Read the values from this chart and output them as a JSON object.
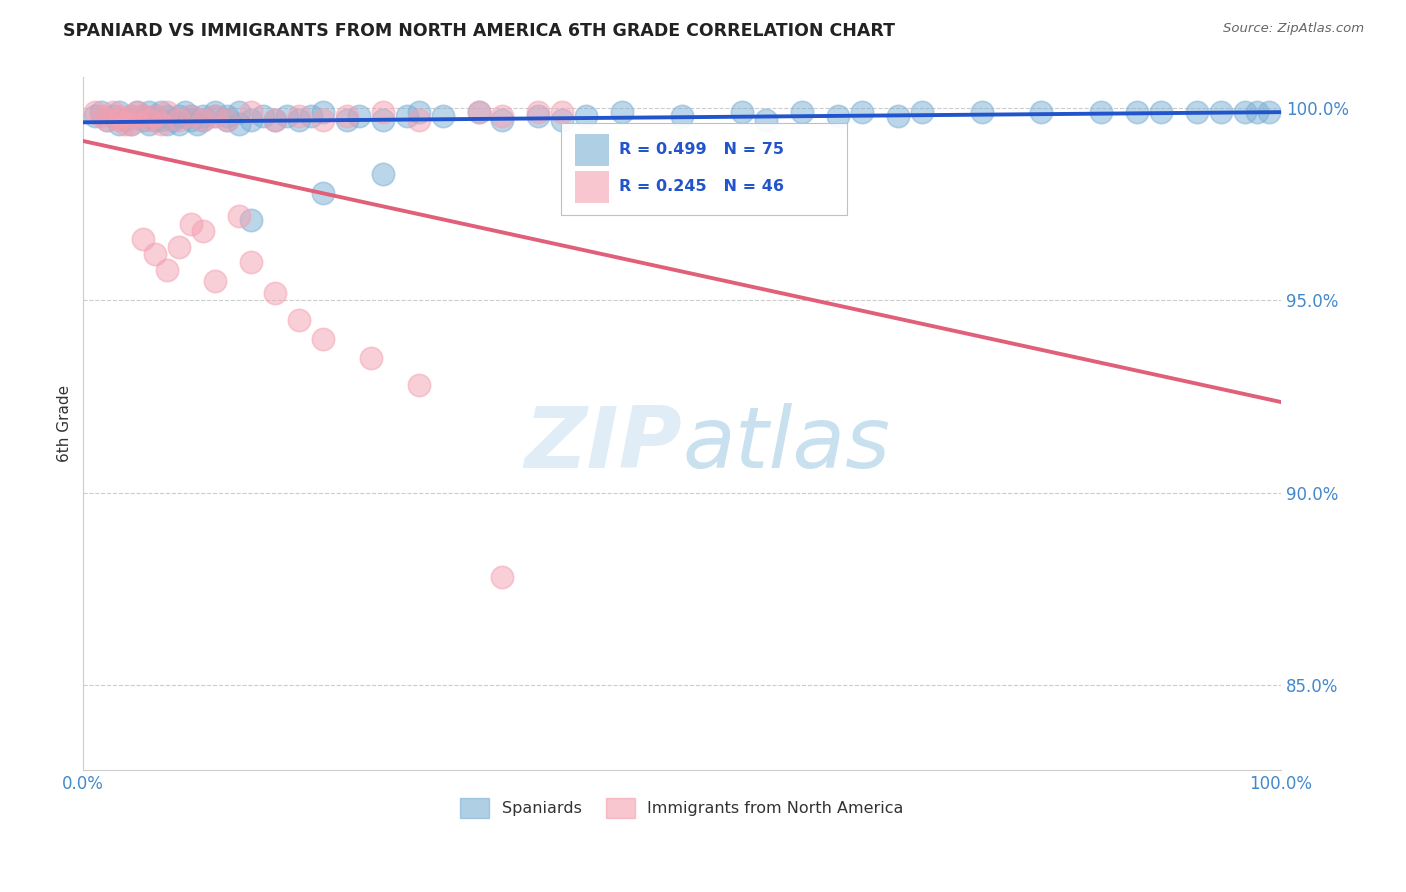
{
  "title": "SPANIARD VS IMMIGRANTS FROM NORTH AMERICA 6TH GRADE CORRELATION CHART",
  "source": "Source: ZipAtlas.com",
  "ylabel": "6th Grade",
  "xlim": [
    0.0,
    1.0
  ],
  "ylim": [
    0.828,
    1.008
  ],
  "yticks": [
    0.85,
    0.9,
    0.95,
    1.0
  ],
  "ytick_labels": [
    "85.0%",
    "90.0%",
    "95.0%",
    "100.0%"
  ],
  "r_spaniards": 0.499,
  "n_spaniards": 75,
  "r_immigrants": 0.245,
  "n_immigrants": 46,
  "color_spaniards": "#7bafd4",
  "color_immigrants": "#f4a0b0",
  "line_color_spaniards": "#2255cc",
  "line_color_immigrants": "#e0607a",
  "legend_spaniards": "Spaniards",
  "legend_immigrants": "Immigrants from North America",
  "spaniards_x": [
    0.01,
    0.015,
    0.02,
    0.025,
    0.03,
    0.03,
    0.035,
    0.04,
    0.04,
    0.045,
    0.05,
    0.05,
    0.055,
    0.055,
    0.06,
    0.06,
    0.065,
    0.065,
    0.07,
    0.07,
    0.075,
    0.08,
    0.08,
    0.085,
    0.09,
    0.09,
    0.095,
    0.1,
    0.1,
    0.11,
    0.11,
    0.12,
    0.12,
    0.13,
    0.13,
    0.14,
    0.15,
    0.16,
    0.17,
    0.18,
    0.19,
    0.2,
    0.22,
    0.23,
    0.25,
    0.27,
    0.28,
    0.3,
    0.33,
    0.35,
    0.38,
    0.4,
    0.42,
    0.45,
    0.5,
    0.55,
    0.57,
    0.6,
    0.63,
    0.65,
    0.68,
    0.7,
    0.75,
    0.8,
    0.85,
    0.88,
    0.9,
    0.93,
    0.95,
    0.97,
    0.98,
    0.99,
    0.14,
    0.2,
    0.25
  ],
  "spaniards_y": [
    0.998,
    0.999,
    0.997,
    0.998,
    0.996,
    0.999,
    0.997,
    0.998,
    0.996,
    0.999,
    0.997,
    0.998,
    0.996,
    0.999,
    0.997,
    0.998,
    0.997,
    0.999,
    0.996,
    0.998,
    0.997,
    0.998,
    0.996,
    0.999,
    0.997,
    0.998,
    0.996,
    0.998,
    0.997,
    0.998,
    0.999,
    0.997,
    0.998,
    0.996,
    0.999,
    0.997,
    0.998,
    0.997,
    0.998,
    0.997,
    0.998,
    0.999,
    0.997,
    0.998,
    0.997,
    0.998,
    0.999,
    0.998,
    0.999,
    0.997,
    0.998,
    0.997,
    0.998,
    0.999,
    0.998,
    0.999,
    0.997,
    0.999,
    0.998,
    0.999,
    0.998,
    0.999,
    0.999,
    0.999,
    0.999,
    0.999,
    0.999,
    0.999,
    0.999,
    0.999,
    0.999,
    0.999,
    0.971,
    0.978,
    0.983
  ],
  "immigrants_x": [
    0.01,
    0.015,
    0.02,
    0.025,
    0.03,
    0.03,
    0.035,
    0.04,
    0.04,
    0.045,
    0.05,
    0.055,
    0.06,
    0.065,
    0.07,
    0.08,
    0.09,
    0.1,
    0.11,
    0.12,
    0.14,
    0.16,
    0.18,
    0.2,
    0.22,
    0.25,
    0.28,
    0.33,
    0.35,
    0.38,
    0.4,
    0.05,
    0.06,
    0.07,
    0.08,
    0.09,
    0.1,
    0.11,
    0.13,
    0.14,
    0.16,
    0.18,
    0.2,
    0.24,
    0.28,
    0.35
  ],
  "immigrants_y": [
    0.999,
    0.998,
    0.997,
    0.999,
    0.997,
    0.998,
    0.996,
    0.998,
    0.996,
    0.999,
    0.998,
    0.997,
    0.998,
    0.996,
    0.999,
    0.997,
    0.998,
    0.997,
    0.998,
    0.997,
    0.999,
    0.997,
    0.998,
    0.997,
    0.998,
    0.999,
    0.997,
    0.999,
    0.998,
    0.999,
    0.999,
    0.966,
    0.962,
    0.958,
    0.964,
    0.97,
    0.968,
    0.955,
    0.972,
    0.96,
    0.952,
    0.945,
    0.94,
    0.935,
    0.928,
    0.878
  ]
}
